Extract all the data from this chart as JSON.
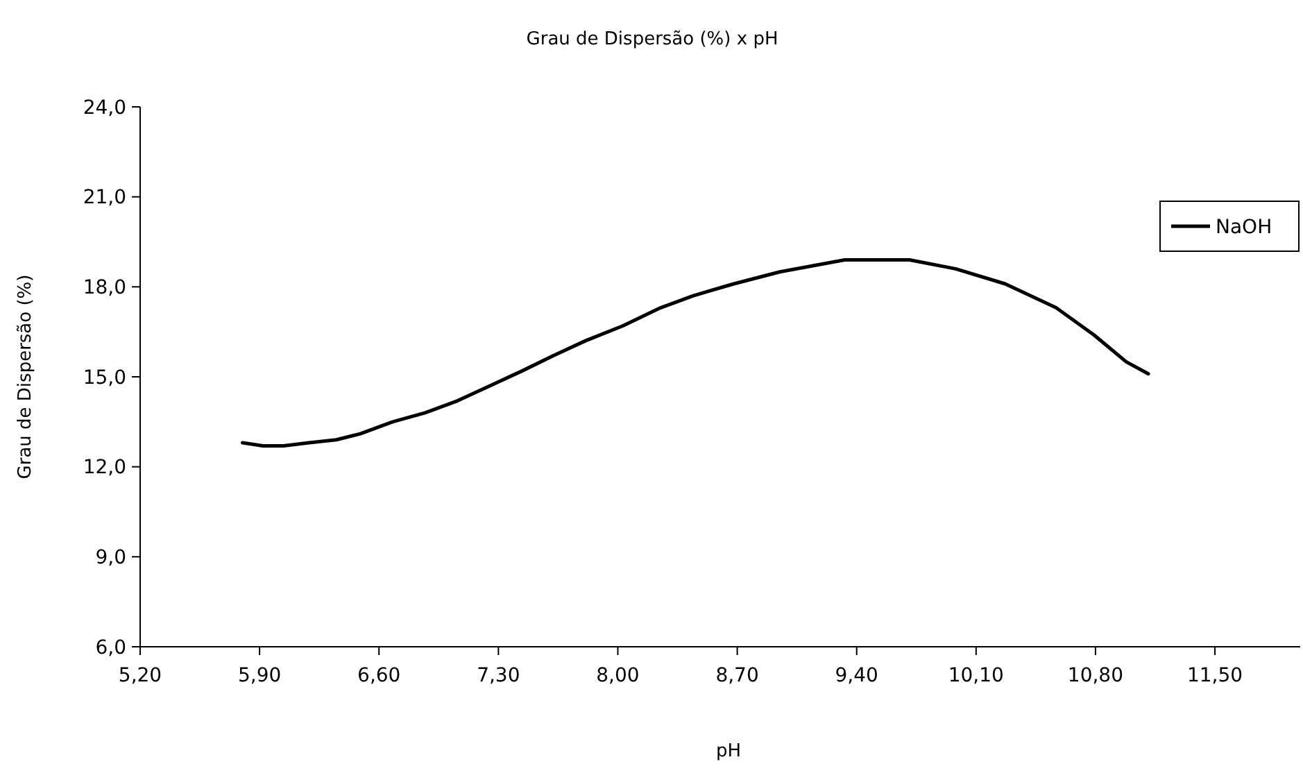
{
  "chart_data": {
    "type": "line",
    "title": "Grau de Dispersão (%)  x   pH",
    "xlabel": "pH",
    "ylabel": "Grau de Dispersão (%)",
    "xlim": [
      5.2,
      12.0
    ],
    "xticks": [
      {
        "value": 5.2,
        "label": "5,20"
      },
      {
        "value": 5.9,
        "label": "5,90"
      },
      {
        "value": 6.6,
        "label": "6,60"
      },
      {
        "value": 7.3,
        "label": "7,30"
      },
      {
        "value": 8.0,
        "label": "8,00"
      },
      {
        "value": 8.7,
        "label": "8,70"
      },
      {
        "value": 9.4,
        "label": "9,40"
      },
      {
        "value": 10.1,
        "label": "10,10"
      },
      {
        "value": 10.8,
        "label": "10,80"
      },
      {
        "value": 11.5,
        "label": "11,50"
      }
    ],
    "ylim": [
      6,
      24
    ],
    "yticks": [
      {
        "value": 6,
        "label": "6,0"
      },
      {
        "value": 9,
        "label": "9,0"
      },
      {
        "value": 12,
        "label": "12,0"
      },
      {
        "value": 15,
        "label": "15,0"
      },
      {
        "value": 18,
        "label": "18,0"
      },
      {
        "value": 21,
        "label": "21,0"
      },
      {
        "value": 24,
        "label": "24,0"
      }
    ],
    "grid": false,
    "legend": "right",
    "marker": "none",
    "line_style": "solid",
    "series": [
      {
        "name": "NaOH",
        "color": "#000000",
        "x": [
          5.8,
          5.92,
          6.04,
          6.19,
          6.35,
          6.49,
          6.68,
          6.87,
          7.06,
          7.25,
          7.44,
          7.62,
          7.81,
          8.03,
          8.25,
          8.44,
          8.68,
          8.95,
          9.33,
          9.71,
          9.98,
          10.27,
          10.57,
          10.79,
          10.98,
          11.11
        ],
        "values": [
          12.8,
          12.7,
          12.7,
          12.8,
          12.9,
          13.1,
          13.5,
          13.8,
          14.2,
          14.7,
          15.2,
          15.7,
          16.2,
          16.7,
          17.3,
          17.7,
          18.1,
          18.5,
          18.9,
          18.9,
          18.6,
          18.1,
          17.3,
          16.4,
          15.5,
          15.1
        ]
      }
    ]
  }
}
